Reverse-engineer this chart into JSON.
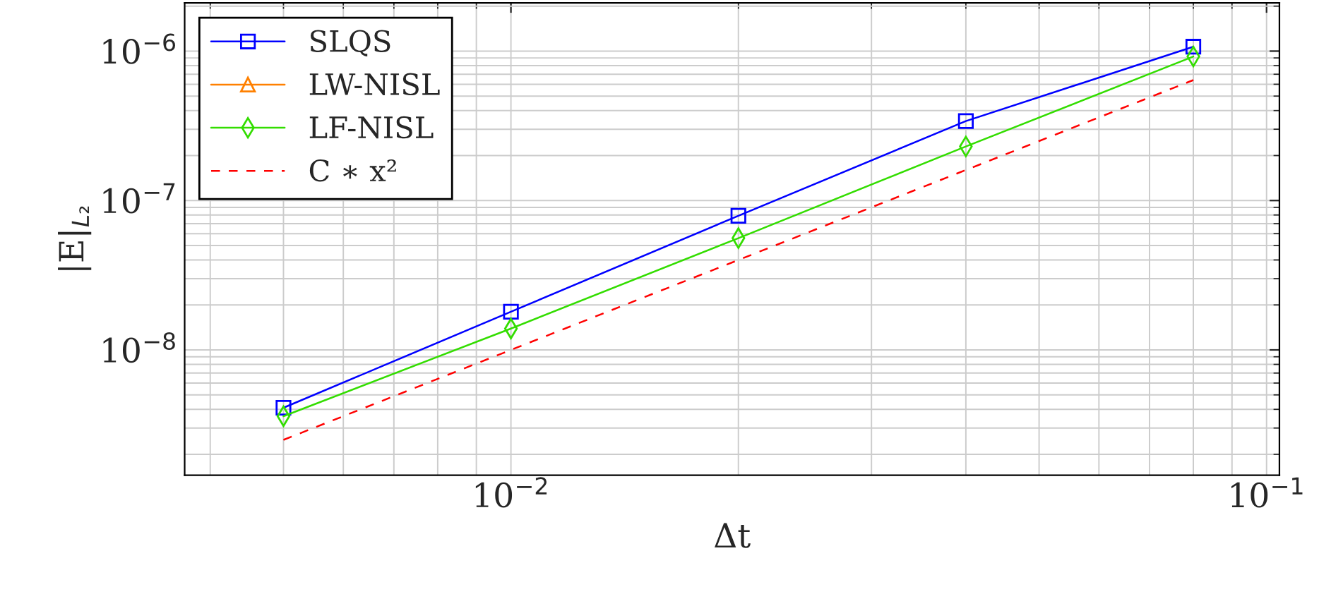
{
  "chart_data": {
    "type": "line",
    "xlabel": "Δt",
    "ylabel": "|E|$_{L₂}$",
    "log": "xy",
    "grid": true,
    "legend": "top left",
    "x": [
      0.005,
      0.01,
      0.02,
      0.04,
      0.08
    ],
    "xlim": [
      0.0037,
      0.104
    ],
    "ylim": [
      1.45e-09,
      2.1e-06
    ],
    "xticks": [
      {
        "value": 0.01,
        "label": "10$^{−2}$"
      },
      {
        "value": 0.1,
        "label": "10$^{−1}$"
      }
    ],
    "yticks": [
      {
        "value": 1e-08,
        "label": "10$^{−8}$"
      },
      {
        "value": 1e-07,
        "label": "10$^{−7}$"
      },
      {
        "value": 1e-06,
        "label": "10$^{−6}$"
      }
    ],
    "series": [
      {
        "name": "SLQS",
        "color": "#0000ff",
        "marker": "square",
        "line_style": "solid",
        "values": [
          4.1e-09,
          1.8e-08,
          7.9e-08,
          3.4e-07,
          1.07e-06
        ]
      },
      {
        "name": "LW-NISL",
        "color": "#ff8000",
        "marker": "triangle",
        "line_style": "solid",
        "values": [
          null,
          null,
          null,
          null,
          null
        ]
      },
      {
        "name": "LF-NISL",
        "color": "#33dd00",
        "marker": "diamond",
        "line_style": "solid",
        "values": [
          3.6e-09,
          1.39e-08,
          5.6e-08,
          2.3e-07,
          9.2e-07
        ]
      },
      {
        "name": "C ∗ x²",
        "color": "#ff0000",
        "marker": "none",
        "line_style": "dashed",
        "values": [
          2.5e-09,
          1e-08,
          4e-08,
          1.6e-07,
          6.4e-07
        ]
      }
    ]
  }
}
